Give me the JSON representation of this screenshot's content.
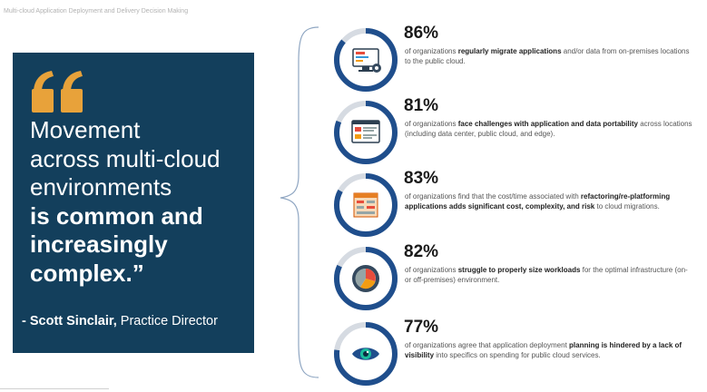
{
  "header": {
    "title": "Multi-cloud Application Deployment and Delivery Decision Making"
  },
  "colors": {
    "navy": "#133f5c",
    "ring_blue": "#1f4e8c",
    "ring_grey": "#d6dbe2",
    "quote_gold": "#e8a23a"
  },
  "quote": {
    "line1": "Movement",
    "line2": "across multi-cloud",
    "line3": "environments",
    "line4": "is common and",
    "line5": "increasingly",
    "line6": "complex.”",
    "author_prefix": "- Scott Sinclair,",
    "author_title": " Practice Director"
  },
  "stats": [
    {
      "percent": "86%",
      "value": 86,
      "icon": "monitor-code-icon",
      "pre": "of organizations ",
      "bold": "regularly migrate applications",
      "post": " and/or data from on-premises locations to the public cloud.",
      "bold2": "",
      "post2": ""
    },
    {
      "percent": "81%",
      "value": 81,
      "icon": "app-window-icon",
      "pre": "of organizations ",
      "bold": "face challenges with application and data portability",
      "post": " across locations (including data center, public cloud, and edge).",
      "bold2": "",
      "post2": ""
    },
    {
      "percent": "83%",
      "value": 83,
      "icon": "cost-table-icon",
      "pre": "of organizations find that the cost/time associated with ",
      "bold": "refactoring/re-platforming applications adds significant cost, complexity, and risk",
      "post": " to cloud migrations.",
      "bold2": "",
      "post2": ""
    },
    {
      "percent": "82%",
      "value": 82,
      "icon": "gear-pie-icon",
      "pre": "of organizations ",
      "bold": "struggle to properly size workloads",
      "post": " for the optimal infrastructure (on- or off-premises) environment.",
      "bold2": "",
      "post2": ""
    },
    {
      "percent": "77%",
      "value": 77,
      "icon": "eye-icon",
      "pre": "of organizations agree that application deployment ",
      "bold": "planning is hindered by a lack of visibility",
      "post": " into specifics on spending for public cloud services.",
      "bold2": "",
      "post2": ""
    }
  ]
}
